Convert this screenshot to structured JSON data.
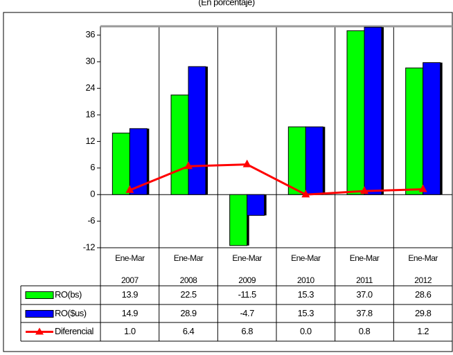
{
  "chart_data": {
    "type": "bar",
    "subtitle": "(En porcentaje)",
    "categories": [
      "Ene-Mar 2007",
      "Ene-Mar 2008",
      "Ene-Mar 2009",
      "Ene-Mar 2010",
      "Ene-Mar 2011",
      "Ene-Mar 2012"
    ],
    "series": [
      {
        "name": "RO(bs)",
        "color": "#00ff00",
        "values": [
          13.9,
          22.5,
          -11.5,
          15.3,
          37.0,
          28.6
        ],
        "value_labels": [
          "13.9",
          "22.5",
          "-11.5",
          "15.3",
          "37.0",
          "28.6"
        ]
      },
      {
        "name": "RO($us)",
        "color": "#0000ff",
        "values": [
          14.9,
          28.9,
          -4.7,
          15.3,
          37.8,
          29.8
        ],
        "value_labels": [
          "14.9",
          "28.9",
          "-4.7",
          "15.3",
          "37.8",
          "29.8"
        ]
      },
      {
        "name": "Diferencial",
        "type": "line",
        "color": "#ff0000",
        "values": [
          1.0,
          6.4,
          6.8,
          0.0,
          0.8,
          1.2
        ],
        "value_labels": [
          "1.0",
          "6.4",
          "6.8",
          "0.0",
          "0.8",
          "1.2"
        ]
      }
    ],
    "ylim": [
      -12,
      38
    ],
    "yticks": [
      -12,
      -6,
      0,
      6,
      12,
      18,
      24,
      30,
      36
    ]
  }
}
